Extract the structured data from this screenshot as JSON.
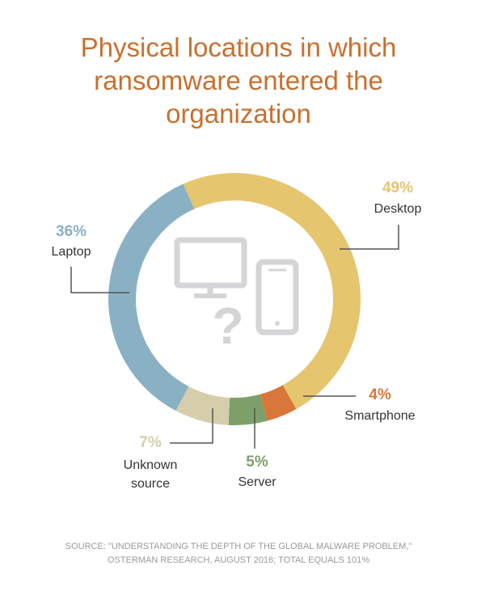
{
  "chart_data": {
    "type": "pie",
    "donut": true,
    "title": "Physical locations in which ransomware entered the organization",
    "categories": [
      "Desktop",
      "Smartphone",
      "Server",
      "Unknown source",
      "Laptop"
    ],
    "values": [
      49,
      4,
      5,
      7,
      36
    ],
    "value_labels": [
      "49%",
      "4%",
      "5%",
      "7%",
      "36%"
    ],
    "colors": [
      "#e6c56f",
      "#d9773a",
      "#7da06a",
      "#d6cdaa",
      "#8ab0c4"
    ],
    "note": "SOURCE: \"UNDERSTANDING THE DEPTH OF THE GLOBAL MALWARE PROBLEM,\" OSTERMAN RESEARCH, AUGUST 2016; TOTAL EQUALS 101%"
  }
}
